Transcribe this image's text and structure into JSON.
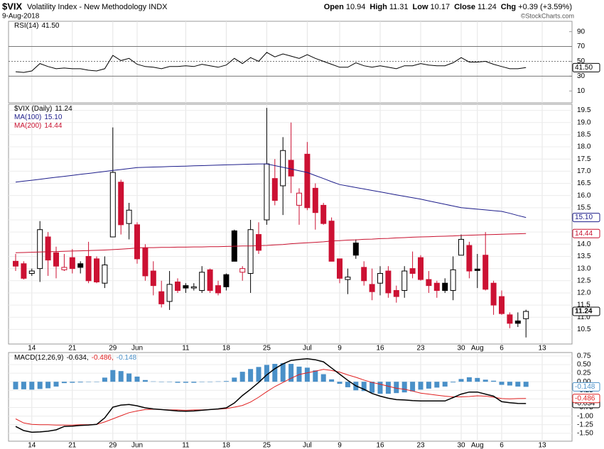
{
  "header": {
    "symbol": "$VIX",
    "name": "Volatility Index - New Methodology INDX",
    "date": "9-Aug-2018",
    "quote": [
      {
        "label": "Open",
        "value": 10.94
      },
      {
        "label": "High",
        "value": 11.31
      },
      {
        "label": "Low",
        "value": 10.17
      },
      {
        "label": "Close",
        "value": 11.24
      },
      {
        "label": "Chg",
        "value": "+0.39 (+3.59%)"
      }
    ],
    "copyright": "©StockCharts.com"
  },
  "chart_data": [
    {
      "type": "line",
      "ylim": [
        -6,
        104
      ],
      "yticks": [
        90,
        70,
        50,
        30,
        10
      ],
      "ref_lines": [
        {
          "value": 70,
          "style": "solid"
        },
        {
          "value": 50,
          "style": "dotted"
        },
        {
          "value": 30,
          "style": "solid"
        }
      ],
      "series": [
        {
          "name": "RSI(14)",
          "color": "#000000",
          "last_label": "41.50",
          "values": [
            36,
            35,
            37,
            47,
            43,
            40,
            41,
            40,
            40,
            38,
            37,
            40,
            58,
            51,
            54,
            46,
            43,
            42,
            40,
            43,
            43,
            44,
            43,
            46,
            44,
            42,
            45,
            54,
            47,
            55,
            50,
            62,
            56,
            60,
            57,
            54,
            59,
            54,
            50,
            46,
            42,
            42,
            48,
            44,
            42,
            44,
            42,
            40,
            44,
            44,
            47,
            45,
            44,
            44,
            48,
            55,
            49,
            49,
            50,
            46,
            43,
            40,
            40,
            41.5,
            null,
            null
          ]
        }
      ]
    },
    {
      "type": "candlestick",
      "ylim": [
        9.9,
        19.75
      ],
      "grid": true,
      "yticks": [
        10.5,
        {
          "value": 11,
          "label": "11.0"
        },
        11.5,
        {
          "value": 12,
          "label": "12.0"
        },
        12.5,
        {
          "value": 13,
          "label": "13.0"
        },
        13.5,
        {
          "value": 14,
          "label": "14.0"
        },
        14.5,
        {
          "value": 15,
          "label": "15.0"
        },
        15.5,
        {
          "value": 16,
          "label": "16.0"
        },
        16.5,
        {
          "value": 17,
          "label": "17.0"
        },
        17.5,
        {
          "value": 18,
          "label": "18.0"
        },
        18.5,
        {
          "value": 19,
          "label": "19.0"
        },
        19.5
      ],
      "categories": [
        null,
        null,
        "14",
        null,
        null,
        null,
        null,
        "21",
        null,
        null,
        null,
        null,
        "29",
        null,
        null,
        "Jun",
        null,
        null,
        null,
        null,
        null,
        "11",
        null,
        null,
        null,
        null,
        "18",
        null,
        null,
        null,
        null,
        "25",
        null,
        null,
        null,
        null,
        "Jul",
        null,
        null,
        null,
        "9",
        null,
        null,
        null,
        null,
        "16",
        null,
        null,
        null,
        null,
        "23",
        null,
        null,
        null,
        null,
        "30",
        null,
        "Aug",
        null,
        null,
        "6",
        null,
        null,
        null,
        null,
        "13"
      ],
      "series": [
        {
          "name": "$VIX (Daily)",
          "up_color": "#000000",
          "down_color": "#cc1133",
          "last_label": "11.24",
          "open": [
            13.3,
            13.2,
            12.8,
            13.0,
            14.3,
            13.65,
            12.95,
            13.45,
            13.2,
            13.5,
            13.4,
            12.4,
            14.3,
            16.55,
            14.85,
            14.8,
            13.85,
            12.9,
            12.05,
            11.65,
            12.45,
            12.3,
            12.2,
            12.1,
            12.95,
            12.3,
            12.75,
            14.55,
            12.85,
            12.8,
            14.4,
            15.0,
            16.7,
            16.4,
            17.45,
            15.6,
            17.7,
            16.3,
            15.6,
            14.95,
            13.4,
            12.55,
            14.05,
            13.05,
            12.35,
            12.4,
            12.9,
            12.1,
            12.1,
            13.0,
            13.45,
            12.55,
            12.4,
            12.4,
            12.1,
            13.55,
            13.95,
            12.98,
            13.55,
            12.4,
            11.85,
            11.1,
            10.85,
            10.94,
            null,
            null
          ],
          "high": [
            13.6,
            13.3,
            13.0,
            14.95,
            14.5,
            13.9,
            13.6,
            13.8,
            13.3,
            14.1,
            13.5,
            13.5,
            18.8,
            16.65,
            15.7,
            14.9,
            14.0,
            13.3,
            12.5,
            12.9,
            12.6,
            12.4,
            12.4,
            13.1,
            13.0,
            12.5,
            12.8,
            14.6,
            13.1,
            15.0,
            14.9,
            19.6,
            17.5,
            18.4,
            19.0,
            16.3,
            18.2,
            16.5,
            15.7,
            15.1,
            13.4,
            13.0,
            14.2,
            13.3,
            13.0,
            13.1,
            13.1,
            12.3,
            13.1,
            13.7,
            13.55,
            12.9,
            12.5,
            12.6,
            13.5,
            14.4,
            14.1,
            13.6,
            14.5,
            12.5,
            12.1,
            11.2,
            11.2,
            11.31,
            null,
            null
          ],
          "low": [
            12.9,
            12.55,
            12.7,
            12.45,
            12.7,
            12.6,
            12.9,
            12.8,
            12.8,
            12.4,
            12.4,
            12.2,
            14.3,
            14.4,
            14.2,
            13.2,
            12.5,
            11.9,
            11.4,
            11.3,
            12.0,
            12.0,
            12.1,
            12.0,
            12.0,
            11.9,
            12.1,
            13.3,
            12.5,
            12.0,
            13.6,
            14.8,
            15.6,
            15.2,
            16.1,
            14.8,
            15.4,
            14.6,
            14.8,
            13.3,
            12.4,
            11.95,
            13.4,
            12.3,
            11.7,
            11.9,
            11.8,
            11.6,
            11.8,
            12.6,
            12.5,
            12.0,
            11.8,
            12.0,
            11.7,
            13.55,
            12.6,
            12.2,
            12.1,
            11.1,
            11.1,
            10.55,
            10.6,
            10.17,
            null,
            null
          ],
          "close": [
            13.1,
            12.6,
            12.9,
            14.6,
            13.35,
            13.1,
            13.05,
            13.0,
            13.05,
            12.5,
            12.45,
            13.15,
            16.95,
            14.8,
            15.4,
            13.4,
            12.7,
            12.3,
            11.55,
            12.35,
            12.1,
            12.2,
            12.25,
            12.85,
            12.1,
            12.0,
            12.25,
            13.3,
            13.0,
            14.6,
            13.75,
            17.3,
            15.8,
            17.85,
            16.8,
            16.1,
            15.5,
            15.3,
            14.85,
            13.3,
            12.6,
            12.65,
            13.55,
            12.5,
            12.05,
            12.8,
            12.0,
            11.85,
            12.9,
            12.8,
            12.55,
            12.3,
            12.1,
            12.1,
            12.95,
            14.2,
            12.9,
            12.92,
            12.15,
            11.5,
            11.15,
            10.75,
            10.75,
            11.24,
            null,
            null
          ]
        },
        {
          "name": "MA(100)",
          "color": "#1c1c8a",
          "last_label": "15.10",
          "values": [
            16.55,
            16.59,
            16.63,
            16.67,
            16.71,
            16.75,
            16.79,
            16.83,
            16.87,
            16.91,
            16.95,
            16.99,
            17.03,
            17.07,
            17.11,
            17.15,
            17.16,
            17.17,
            17.18,
            17.19,
            17.2,
            17.21,
            17.22,
            17.23,
            17.24,
            17.25,
            17.26,
            17.27,
            17.28,
            17.29,
            17.3,
            17.3,
            17.23,
            17.16,
            17.09,
            17.02,
            16.95,
            16.82,
            16.7,
            16.57,
            16.45,
            16.39,
            16.33,
            16.27,
            16.21,
            16.15,
            16.09,
            16.03,
            15.97,
            15.91,
            15.85,
            15.78,
            15.71,
            15.64,
            15.57,
            15.5,
            15.47,
            15.44,
            15.41,
            15.38,
            15.35,
            15.27,
            15.18,
            15.1,
            null,
            null
          ]
        },
        {
          "name": "MA(200)",
          "color": "#c8102e",
          "last_label": "14.44",
          "values": [
            13.65,
            13.66,
            13.67,
            13.68,
            13.69,
            13.7,
            13.71,
            13.72,
            13.73,
            13.74,
            13.75,
            13.76,
            13.78,
            13.8,
            13.82,
            13.85,
            13.86,
            13.86,
            13.87,
            13.87,
            13.88,
            13.88,
            13.89,
            13.89,
            13.9,
            13.9,
            13.91,
            13.92,
            13.93,
            13.93,
            13.94,
            13.95,
            13.97,
            13.99,
            14.02,
            14.04,
            14.06,
            14.08,
            14.1,
            14.13,
            14.15,
            14.17,
            14.18,
            14.2,
            14.21,
            14.23,
            14.24,
            14.26,
            14.27,
            14.29,
            14.3,
            14.31,
            14.32,
            14.33,
            14.34,
            14.36,
            14.37,
            14.38,
            14.39,
            14.4,
            14.41,
            14.42,
            14.43,
            14.44,
            null,
            null
          ]
        }
      ]
    },
    {
      "type": "macd",
      "ylim": [
        -1.73,
        0.85
      ],
      "yticks": [
        0.75,
        {
          "value": 0.5,
          "label": "0.50"
        },
        0.25,
        {
          "value": 0,
          "label": "0.00"
        },
        -0.25,
        {
          "value": -0.5,
          "label": "-0.50"
        },
        -0.75,
        {
          "value": -1,
          "label": "-1.00"
        },
        -1.25,
        {
          "value": -1.5,
          "label": "-1.50"
        }
      ],
      "series": [
        {
          "name": "MACD(12,26,9)",
          "kind": "line",
          "color": "#000000",
          "legend_label": "-0.634,",
          "last_label": "-0.634",
          "values": [
            -1.3,
            -1.42,
            -1.47,
            -1.46,
            -1.44,
            -1.4,
            -1.3,
            -1.29,
            -1.27,
            -1.26,
            -1.24,
            -1.05,
            -0.74,
            -0.68,
            -0.66,
            -0.7,
            -0.76,
            -0.79,
            -0.81,
            -0.83,
            -0.85,
            -0.86,
            -0.85,
            -0.83,
            -0.81,
            -0.79,
            -0.76,
            -0.62,
            -0.4,
            -0.22,
            -0.02,
            0.2,
            0.38,
            0.52,
            0.62,
            0.65,
            0.67,
            0.64,
            0.58,
            0.4,
            0.22,
            0.04,
            -0.12,
            -0.22,
            -0.34,
            -0.42,
            -0.48,
            -0.52,
            -0.53,
            -0.55,
            -0.56,
            -0.56,
            -0.56,
            -0.56,
            -0.46,
            -0.36,
            -0.3,
            -0.3,
            -0.36,
            -0.42,
            -0.58,
            -0.61,
            -0.63,
            -0.634,
            null,
            null
          ]
        },
        {
          "kind": "line",
          "color": "#e02020",
          "legend_label": "-0.486,",
          "last_label": "-0.486",
          "values": [
            -1.08,
            -1.2,
            -1.24,
            -1.25,
            -1.25,
            -1.26,
            -1.26,
            -1.26,
            -1.25,
            -1.25,
            -1.24,
            -1.17,
            -1.08,
            -0.99,
            -0.9,
            -0.85,
            -0.81,
            -0.8,
            -0.81,
            -0.82,
            -0.82,
            -0.83,
            -0.82,
            -0.82,
            -0.81,
            -0.8,
            -0.78,
            -0.74,
            -0.69,
            -0.59,
            -0.45,
            -0.29,
            -0.14,
            -0.02,
            0.1,
            0.21,
            0.26,
            0.31,
            0.36,
            0.33,
            0.28,
            0.2,
            0.13,
            0.05,
            -0.02,
            -0.07,
            -0.13,
            -0.19,
            -0.22,
            -0.27,
            -0.33,
            -0.36,
            -0.39,
            -0.42,
            -0.44,
            -0.44,
            -0.43,
            -0.41,
            -0.42,
            -0.45,
            -0.49,
            -0.5,
            -0.49,
            -0.486,
            null,
            null
          ]
        },
        {
          "kind": "bar",
          "color": "#4a90c8",
          "legend_label": "-0.148",
          "last_label": "-0.148",
          "values": [
            -0.22,
            -0.22,
            -0.23,
            -0.21,
            -0.19,
            -0.14,
            -0.04,
            -0.03,
            -0.02,
            -0.01,
            0,
            0.12,
            0.34,
            0.31,
            0.24,
            0.15,
            0.05,
            0.01,
            0,
            -0.01,
            -0.03,
            -0.03,
            -0.03,
            -0.01,
            0,
            0.01,
            0.02,
            0.12,
            0.29,
            0.37,
            0.43,
            0.49,
            0.52,
            0.54,
            0.52,
            0.44,
            0.41,
            0.33,
            0.22,
            0.07,
            -0.06,
            -0.16,
            -0.25,
            -0.27,
            -0.32,
            -0.35,
            -0.35,
            -0.33,
            -0.31,
            -0.28,
            -0.23,
            -0.2,
            -0.17,
            -0.14,
            -0.02,
            0.08,
            0.13,
            0.11,
            0.06,
            0.03,
            -0.09,
            -0.11,
            -0.14,
            -0.148,
            null,
            null
          ]
        }
      ]
    }
  ]
}
